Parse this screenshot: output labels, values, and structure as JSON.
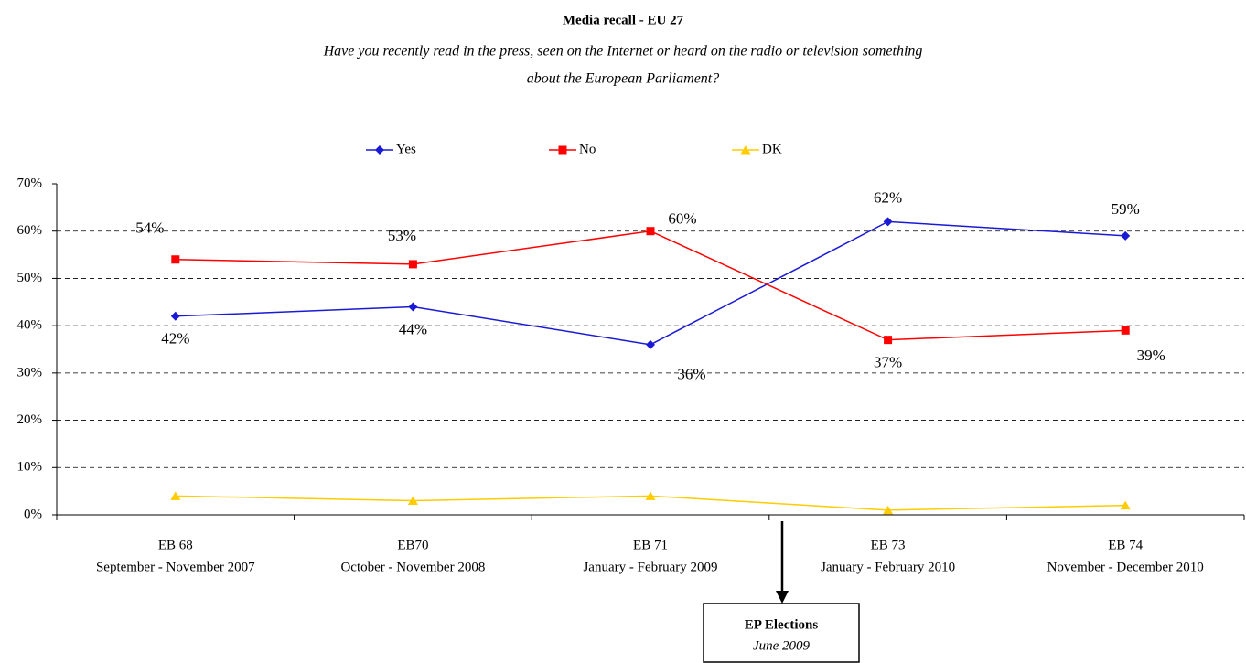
{
  "chart_data": {
    "type": "line",
    "title": "Media recall - EU 27",
    "subtitle": [
      "Have you recently read in the press, seen on the Internet or heard on the radio or television something",
      "about the European Parliament?"
    ],
    "categories": [
      [
        "EB 68",
        "September - November 2007"
      ],
      [
        "EB70",
        "October - November 2008"
      ],
      [
        "EB 71",
        "January - February 2009"
      ],
      [
        "EB 73",
        "January - February 2010"
      ],
      [
        "EB 74",
        "November - December 2010"
      ]
    ],
    "series": [
      {
        "name": "Yes",
        "color": "#1a1ad6",
        "marker": "diamond",
        "values": [
          42,
          44,
          36,
          62,
          59
        ],
        "value_labels": [
          "42%",
          "44%",
          "36%",
          "62%",
          "59%"
        ]
      },
      {
        "name": "No",
        "color": "#ff0000",
        "marker": "square",
        "values": [
          54,
          53,
          60,
          37,
          39
        ],
        "value_labels": [
          "54%",
          "53%",
          "60%",
          "37%",
          "39%"
        ]
      },
      {
        "name": "DK",
        "color": "#ffcc00",
        "marker": "triangle",
        "values": [
          4,
          3,
          4,
          1,
          2
        ]
      }
    ],
    "ylim": [
      0,
      70
    ],
    "yticks": [
      {
        "value": 0,
        "label": "0%"
      },
      {
        "value": 10,
        "label": "10%"
      },
      {
        "value": 20,
        "label": "20%"
      },
      {
        "value": 30,
        "label": "30%"
      },
      {
        "value": 40,
        "label": "40%"
      },
      {
        "value": 50,
        "label": "50%"
      },
      {
        "value": 60,
        "label": "60%"
      },
      {
        "value": 70,
        "label": "70%"
      }
    ],
    "grid": true,
    "legend": "top",
    "annotation": {
      "title": "EP Elections",
      "subtitle": "June 2009"
    }
  }
}
